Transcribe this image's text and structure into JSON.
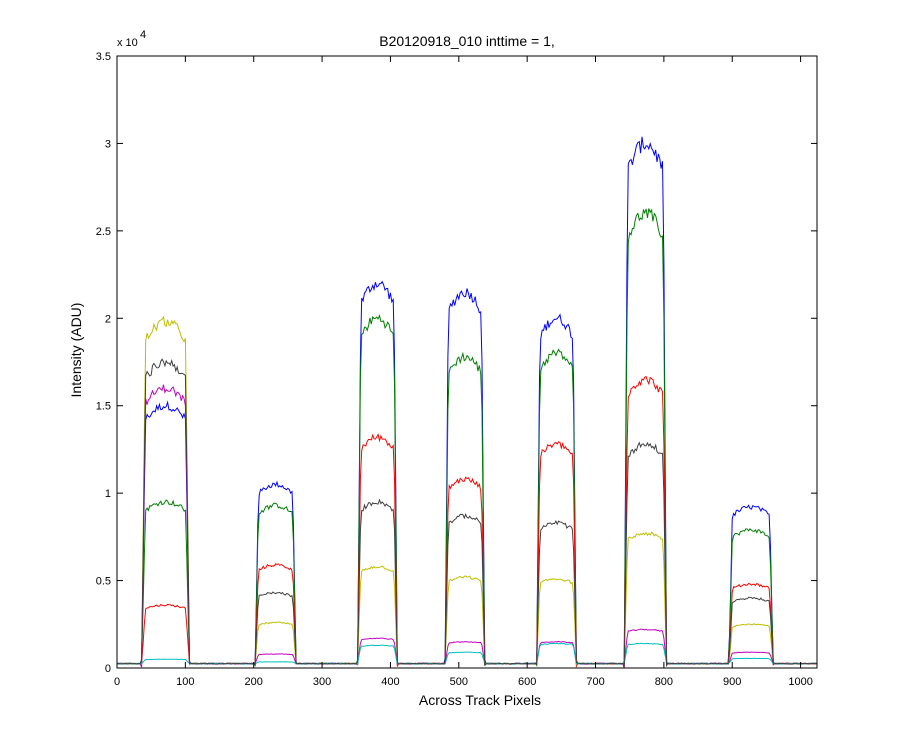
{
  "chart_data": {
    "type": "line",
    "title": "B20120918_010 inttime = 1,",
    "xlabel": "Across Track Pixels",
    "ylabel": "Intensity (ADU)",
    "xlim": [
      0,
      1024
    ],
    "ylim": [
      0,
      35000
    ],
    "y_multiplier": {
      "prefix": "x 10",
      "exponent": "4"
    },
    "x_ticks": [
      0,
      100,
      200,
      300,
      400,
      500,
      600,
      700,
      800,
      900,
      1000
    ],
    "x_tick_labels": [
      "0",
      "100",
      "200",
      "300",
      "400",
      "500",
      "600",
      "700",
      "800",
      "900",
      "1000"
    ],
    "y_ticks": [
      0,
      5000,
      10000,
      15000,
      20000,
      25000,
      30000,
      35000
    ],
    "y_tick_labels": [
      "0",
      "0.5",
      "1",
      "1.5",
      "2",
      "2.5",
      "3",
      "3.5"
    ],
    "grid": false,
    "baseline": 250,
    "peaks": [
      {
        "x_start": 36,
        "x_end": 106
      },
      {
        "x_start": 202,
        "x_end": 262
      },
      {
        "x_start": 352,
        "x_end": 410
      },
      {
        "x_start": 480,
        "x_end": 538
      },
      {
        "x_start": 614,
        "x_end": 672
      },
      {
        "x_start": 742,
        "x_end": 804
      },
      {
        "x_start": 895,
        "x_end": 960
      }
    ],
    "series": [
      {
        "color": "#0000ff",
        "levels": [
          15000,
          10500,
          22000,
          21500,
          20000,
          30000,
          9200
        ]
      },
      {
        "color": "#007f00",
        "levels": [
          9500,
          9300,
          20000,
          17800,
          18000,
          26000,
          7900
        ]
      },
      {
        "color": "#ff0000",
        "levels": [
          3600,
          5900,
          13200,
          10800,
          12800,
          16500,
          4800
        ]
      },
      {
        "color": "#bfbf00",
        "levels": [
          19800,
          2600,
          5800,
          5200,
          5100,
          7700,
          2500
        ]
      },
      {
        "color": "#bf00bf",
        "levels": [
          16000,
          800,
          1700,
          1500,
          1500,
          2200,
          900
        ]
      },
      {
        "color": "#00bfbf",
        "levels": [
          500,
          350,
          1300,
          900,
          1400,
          1400,
          550
        ]
      },
      {
        "color": "#404040",
        "levels": [
          17500,
          4300,
          9500,
          8700,
          8300,
          12800,
          4000
        ]
      }
    ]
  }
}
